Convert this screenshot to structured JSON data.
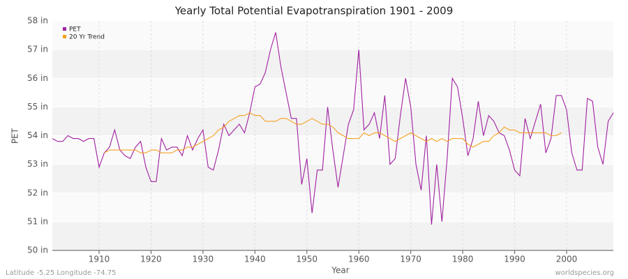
{
  "chart_data": {
    "type": "line",
    "title": "Yearly Total Potential Evapotranspiration 1901 - 2009",
    "x_label": "Year",
    "y_label": "PET",
    "footer_left": "Latitude -5.25 Longitude -74.75",
    "footer_right": "worldspecies.org",
    "legend": "top-left",
    "grid": true,
    "x": [
      1901,
      1902,
      1903,
      1904,
      1905,
      1906,
      1907,
      1908,
      1909,
      1910,
      1911,
      1912,
      1913,
      1914,
      1915,
      1916,
      1917,
      1918,
      1919,
      1920,
      1921,
      1922,
      1923,
      1924,
      1925,
      1926,
      1927,
      1928,
      1929,
      1930,
      1931,
      1932,
      1933,
      1934,
      1935,
      1936,
      1937,
      1938,
      1939,
      1940,
      1941,
      1942,
      1943,
      1944,
      1945,
      1946,
      1947,
      1948,
      1949,
      1950,
      1951,
      1952,
      1953,
      1954,
      1955,
      1956,
      1957,
      1958,
      1959,
      1960,
      1961,
      1962,
      1963,
      1964,
      1965,
      1966,
      1967,
      1968,
      1969,
      1970,
      1971,
      1972,
      1973,
      1974,
      1975,
      1976,
      1977,
      1978,
      1979,
      1980,
      1981,
      1982,
      1983,
      1984,
      1985,
      1986,
      1987,
      1988,
      1989,
      1990,
      1991,
      1992,
      1993,
      1994,
      1995,
      1996,
      1997,
      1998,
      1999,
      2000,
      2001,
      2002,
      2003,
      2004,
      2005,
      2006,
      2007,
      2008,
      2009
    ],
    "series": [
      {
        "name": "PET",
        "color": "#a020a0",
        "values": [
          53.9,
          53.8,
          53.8,
          54.0,
          53.9,
          53.9,
          53.8,
          53.9,
          53.9,
          52.9,
          53.4,
          53.6,
          54.2,
          53.5,
          53.3,
          53.2,
          53.6,
          53.8,
          52.9,
          52.4,
          52.4,
          53.9,
          53.5,
          53.6,
          53.6,
          53.3,
          54.0,
          53.5,
          53.9,
          54.2,
          52.9,
          52.8,
          53.5,
          54.4,
          54.0,
          54.2,
          54.4,
          54.1,
          54.8,
          55.7,
          55.8,
          56.2,
          57.0,
          57.6,
          56.4,
          55.5,
          54.6,
          54.6,
          52.3,
          53.2,
          51.3,
          52.8,
          52.8,
          55.0,
          53.5,
          52.2,
          53.3,
          54.4,
          54.9,
          57.0,
          54.2,
          54.4,
          54.8,
          53.9,
          55.4,
          53.0,
          53.2,
          54.7,
          56.0,
          55.0,
          53.0,
          52.1,
          54.0,
          50.9,
          53.0,
          51.0,
          53.2,
          56.0,
          55.7,
          54.6,
          53.3,
          53.9,
          55.2,
          54.0,
          54.7,
          54.5,
          54.1,
          54.0,
          53.5,
          52.8,
          52.6,
          54.6,
          53.9,
          54.5,
          55.1,
          53.4,
          53.9,
          55.4,
          55.4,
          54.9,
          53.4,
          52.8,
          52.8,
          55.3,
          55.2,
          53.6,
          53.0,
          54.5,
          54.8
        ]
      },
      {
        "name": "20 Yr Trend",
        "color": "#f5a020",
        "values": [
          null,
          null,
          null,
          null,
          null,
          null,
          null,
          null,
          null,
          null,
          53.4,
          53.5,
          53.5,
          53.5,
          53.5,
          53.5,
          53.5,
          53.4,
          53.4,
          53.5,
          53.5,
          53.4,
          53.4,
          53.4,
          53.5,
          53.5,
          53.6,
          53.6,
          53.7,
          53.8,
          53.9,
          54.0,
          54.2,
          54.3,
          54.5,
          54.6,
          54.7,
          54.7,
          54.8,
          54.7,
          54.7,
          54.5,
          54.5,
          54.5,
          54.6,
          54.6,
          54.5,
          54.4,
          54.4,
          54.5,
          54.6,
          54.5,
          54.4,
          54.4,
          54.3,
          54.1,
          54.0,
          53.9,
          53.9,
          53.9,
          54.1,
          54.0,
          54.1,
          54.1,
          54.0,
          53.9,
          53.8,
          53.9,
          54.0,
          54.1,
          54.0,
          53.9,
          53.8,
          53.9,
          53.8,
          53.9,
          53.8,
          53.9,
          53.9,
          53.9,
          53.7,
          53.6,
          53.7,
          53.8,
          53.8,
          54.0,
          54.1,
          54.3,
          54.2,
          54.2,
          54.1,
          54.1,
          54.1,
          54.1,
          54.1,
          54.1,
          54.0,
          54.0,
          54.1,
          null,
          null,
          null,
          null,
          null,
          null,
          null,
          null,
          null,
          null
        ]
      }
    ],
    "xlim": [
      1901,
      2009
    ],
    "xticks": [
      1910,
      1920,
      1930,
      1940,
      1950,
      1960,
      1970,
      1980,
      1990,
      2000
    ],
    "ylim": [
      50,
      58
    ],
    "yticks": [
      {
        "value": 50,
        "label": "50 in"
      },
      {
        "value": 51,
        "label": "51 in"
      },
      {
        "value": 52,
        "label": "52 in"
      },
      {
        "value": 53,
        "label": "53 in"
      },
      {
        "value": 54,
        "label": "54 in"
      },
      {
        "value": 55,
        "label": "55 in"
      },
      {
        "value": 56,
        "label": "56 in"
      },
      {
        "value": 57,
        "label": "57 in"
      },
      {
        "value": 58,
        "label": "58 in"
      }
    ]
  }
}
